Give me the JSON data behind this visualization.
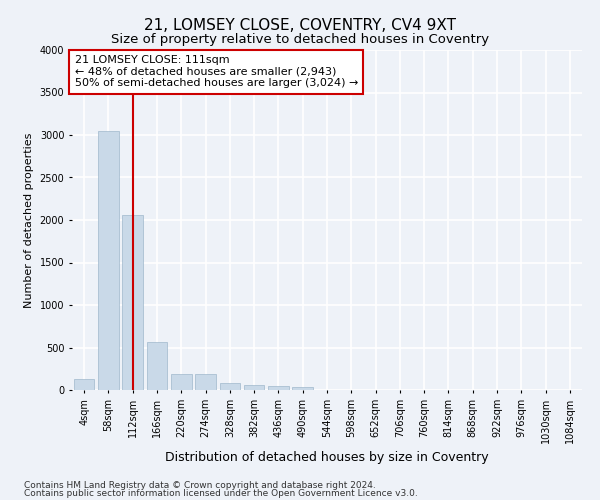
{
  "title": "21, LOMSEY CLOSE, COVENTRY, CV4 9XT",
  "subtitle": "Size of property relative to detached houses in Coventry",
  "xlabel": "Distribution of detached houses by size in Coventry",
  "ylabel": "Number of detached properties",
  "categories": [
    "4sqm",
    "58sqm",
    "112sqm",
    "166sqm",
    "220sqm",
    "274sqm",
    "328sqm",
    "382sqm",
    "436sqm",
    "490sqm",
    "544sqm",
    "598sqm",
    "652sqm",
    "706sqm",
    "760sqm",
    "814sqm",
    "868sqm",
    "922sqm",
    "976sqm",
    "1030sqm",
    "1084sqm"
  ],
  "values": [
    130,
    3050,
    2060,
    560,
    190,
    190,
    80,
    60,
    50,
    30,
    0,
    0,
    0,
    0,
    0,
    0,
    0,
    0,
    0,
    0,
    0
  ],
  "bar_color": "#c9d9e8",
  "bar_edge_color": "#a0b8cc",
  "red_line_x": 2,
  "annotation_line1": "21 LOMSEY CLOSE: 111sqm",
  "annotation_line2": "← 48% of detached houses are smaller (2,943)",
  "annotation_line3": "50% of semi-detached houses are larger (3,024) →",
  "annotation_box_color": "#ffffff",
  "annotation_box_edge": "#cc0000",
  "footer1": "Contains HM Land Registry data © Crown copyright and database right 2024.",
  "footer2": "Contains public sector information licensed under the Open Government Licence v3.0.",
  "ylim": [
    0,
    4000
  ],
  "yticks": [
    0,
    500,
    1000,
    1500,
    2000,
    2500,
    3000,
    3500,
    4000
  ],
  "bg_color": "#eef2f8",
  "grid_color": "#ffffff",
  "title_fontsize": 11,
  "subtitle_fontsize": 9.5,
  "ylabel_fontsize": 8,
  "xlabel_fontsize": 9,
  "tick_fontsize": 7,
  "annotation_fontsize": 8,
  "footer_fontsize": 6.5
}
